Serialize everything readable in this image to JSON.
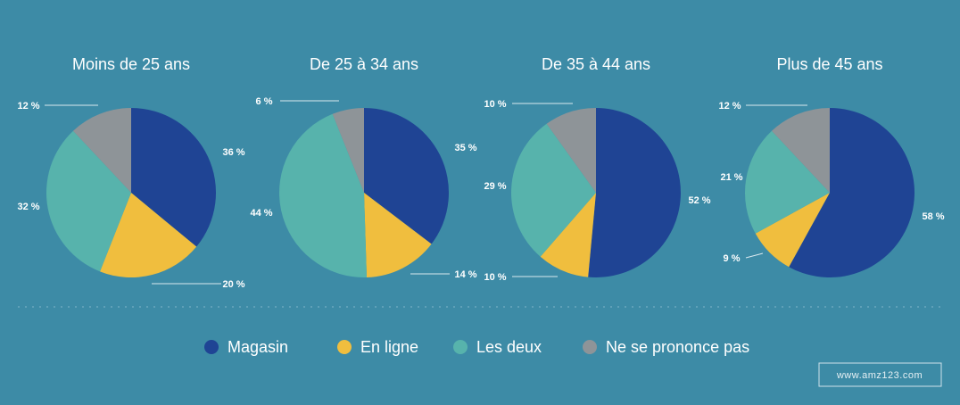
{
  "chart_data": {
    "type": "pie",
    "categories": [
      "Magasin",
      "En ligne",
      "Les deux",
      "Ne se prononce pas"
    ],
    "colors": [
      "#1f4494",
      "#f0be3e",
      "#57b3ac",
      "#8e9498"
    ],
    "charts": [
      {
        "title": "Moins de 25 ans",
        "values": [
          36,
          20,
          32,
          12
        ],
        "labels": [
          "36 %",
          "20 %",
          "32 %",
          "12 %"
        ]
      },
      {
        "title": "De 25 à 34 ans",
        "values": [
          35,
          14,
          44,
          6
        ],
        "labels": [
          "35 %",
          "14 %",
          "44 %",
          "6 %"
        ]
      },
      {
        "title": "De 35 à 44 ans",
        "values": [
          52,
          10,
          29,
          10
        ],
        "labels": [
          "52 %",
          "10 %",
          "29 %",
          "10 %"
        ]
      },
      {
        "title": "Plus de 45 ans",
        "values": [
          58,
          9,
          21,
          12
        ],
        "labels": [
          "58 %",
          "9 %",
          "21 %",
          "12 %"
        ]
      }
    ],
    "legend": {
      "placement": "bottom",
      "items": [
        "Magasin",
        "En ligne",
        "Les deux",
        "Ne se prononce pas"
      ]
    }
  },
  "watermark": "www.amz123.com"
}
